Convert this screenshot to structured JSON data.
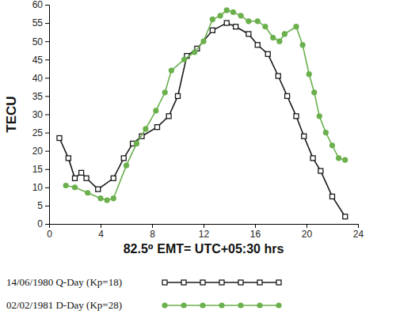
{
  "chart_data": {
    "type": "line",
    "y_label": "TECU",
    "x_label": "82.5⁰ EMT= UTC+05:30 hrs",
    "xlim": [
      0,
      24
    ],
    "xticks": [
      0,
      4,
      8,
      12,
      16,
      20,
      24
    ],
    "ylim": [
      0,
      60
    ],
    "yticks": [
      0,
      5,
      10,
      15,
      20,
      25,
      30,
      35,
      40,
      45,
      50,
      55,
      60
    ],
    "grid": false,
    "legend": "bottom",
    "series": [
      {
        "name": "14/06/1980 Q-Day (Kp=18)",
        "color": "#1a1a1a",
        "marker": "square",
        "line_style": "solid",
        "x": [
          0.8,
          1.5,
          2.0,
          2.5,
          2.9,
          3.8,
          5.0,
          5.8,
          6.5,
          7.2,
          8.4,
          9.3,
          10.0,
          10.7,
          11.5,
          12.7,
          13.8,
          14.5,
          15.5,
          16.2,
          17.0,
          17.8,
          18.5,
          19.2,
          19.8,
          20.5,
          21.1,
          22.0,
          23.0
        ],
        "values": [
          23.5,
          18,
          12.5,
          14,
          12.5,
          9.5,
          12.5,
          18,
          22,
          24,
          26.5,
          29.5,
          35,
          46,
          48,
          53,
          55,
          54,
          52,
          49,
          46.5,
          40.5,
          35,
          29.5,
          24,
          18,
          14.5,
          7.5,
          2
        ]
      },
      {
        "name": "02/02/1981 D-Day (Kp=28)",
        "color": "#6ab04c",
        "marker": "circle",
        "line_style": "solid",
        "x": [
          1.3,
          2.0,
          3.0,
          4.0,
          4.5,
          5.0,
          6.0,
          6.8,
          7.5,
          8.3,
          9.0,
          9.5,
          10.5,
          11.3,
          12.0,
          12.7,
          13.3,
          13.8,
          14.3,
          14.9,
          15.5,
          16.2,
          16.8,
          17.4,
          17.9,
          18.3,
          19.2,
          19.7,
          20.2,
          20.6,
          21.0,
          21.5,
          22.0,
          22.5,
          23.0
        ],
        "values": [
          10.5,
          10,
          8.5,
          7,
          6.5,
          7,
          16,
          22,
          26,
          31,
          36,
          42,
          45,
          47,
          50,
          56,
          57,
          58.5,
          58,
          57,
          55.5,
          55.5,
          54,
          51,
          50,
          52,
          54,
          49,
          41,
          36,
          29.5,
          25,
          21.5,
          18,
          17.5
        ]
      }
    ]
  }
}
